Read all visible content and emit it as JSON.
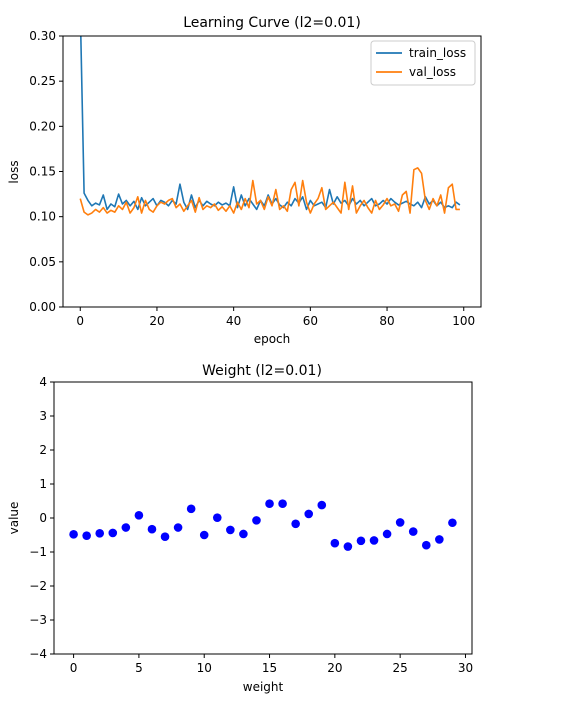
{
  "chart_data": [
    {
      "type": "line",
      "title": "Learning Curve (l2=0.01)",
      "xlabel": "epoch",
      "ylabel": "loss",
      "xlim": [
        -4.5,
        104.5
      ],
      "ylim": [
        0.0,
        0.3
      ],
      "xticks": [
        "0",
        "20",
        "40",
        "60",
        "80",
        "100"
      ],
      "yticks": [
        "0.00",
        "0.05",
        "0.10",
        "0.15",
        "0.20",
        "0.25",
        "0.30"
      ],
      "legend": "top-right",
      "grid": false,
      "x": [
        0,
        1,
        2,
        3,
        4,
        5,
        6,
        7,
        8,
        9,
        10,
        11,
        12,
        13,
        14,
        15,
        16,
        17,
        18,
        19,
        20,
        21,
        22,
        23,
        24,
        25,
        26,
        27,
        28,
        29,
        30,
        31,
        32,
        33,
        34,
        35,
        36,
        37,
        38,
        39,
        40,
        41,
        42,
        43,
        44,
        45,
        46,
        47,
        48,
        49,
        50,
        51,
        52,
        53,
        54,
        55,
        56,
        57,
        58,
        59,
        60,
        61,
        62,
        63,
        64,
        65,
        66,
        67,
        68,
        69,
        70,
        71,
        72,
        73,
        74,
        75,
        76,
        77,
        78,
        79,
        80,
        81,
        82,
        83,
        84,
        85,
        86,
        87,
        88,
        89,
        90,
        91,
        92,
        93,
        94,
        95,
        96,
        97,
        98,
        99
      ],
      "series": [
        {
          "name": "train_loss",
          "color": "#1f77b4",
          "values": [
            0.33,
            0.126,
            0.118,
            0.112,
            0.115,
            0.113,
            0.124,
            0.108,
            0.114,
            0.111,
            0.125,
            0.114,
            0.118,
            0.112,
            0.117,
            0.108,
            0.121,
            0.112,
            0.116,
            0.12,
            0.112,
            0.118,
            0.116,
            0.112,
            0.118,
            0.114,
            0.136,
            0.116,
            0.108,
            0.124,
            0.11,
            0.118,
            0.112,
            0.117,
            0.114,
            0.112,
            0.116,
            0.113,
            0.115,
            0.112,
            0.133,
            0.11,
            0.124,
            0.112,
            0.12,
            0.114,
            0.108,
            0.118,
            0.112,
            0.124,
            0.114,
            0.12,
            0.113,
            0.11,
            0.116,
            0.112,
            0.12,
            0.115,
            0.122,
            0.108,
            0.118,
            0.112,
            0.114,
            0.116,
            0.11,
            0.13,
            0.114,
            0.122,
            0.115,
            0.118,
            0.112,
            0.12,
            0.114,
            0.118,
            0.112,
            0.116,
            0.12,
            0.112,
            0.114,
            0.118,
            0.114,
            0.12,
            0.116,
            0.113,
            0.115,
            0.117,
            0.114,
            0.112,
            0.116,
            0.11,
            0.122,
            0.114,
            0.118,
            0.112,
            0.116,
            0.11,
            0.112,
            0.11,
            0.116,
            0.113
          ]
        },
        {
          "name": "val_loss",
          "color": "#ff7f0e",
          "values": [
            0.12,
            0.105,
            0.102,
            0.104,
            0.108,
            0.105,
            0.11,
            0.104,
            0.107,
            0.105,
            0.112,
            0.108,
            0.116,
            0.104,
            0.11,
            0.122,
            0.104,
            0.118,
            0.108,
            0.105,
            0.112,
            0.116,
            0.114,
            0.118,
            0.12,
            0.11,
            0.114,
            0.106,
            0.112,
            0.118,
            0.105,
            0.121,
            0.108,
            0.112,
            0.11,
            0.114,
            0.107,
            0.111,
            0.106,
            0.112,
            0.104,
            0.116,
            0.108,
            0.12,
            0.11,
            0.14,
            0.114,
            0.118,
            0.108,
            0.122,
            0.112,
            0.13,
            0.108,
            0.112,
            0.106,
            0.13,
            0.138,
            0.112,
            0.14,
            0.116,
            0.104,
            0.114,
            0.12,
            0.132,
            0.108,
            0.112,
            0.116,
            0.11,
            0.104,
            0.138,
            0.108,
            0.134,
            0.104,
            0.112,
            0.118,
            0.11,
            0.104,
            0.118,
            0.108,
            0.113,
            0.12,
            0.112,
            0.114,
            0.106,
            0.124,
            0.128,
            0.104,
            0.152,
            0.154,
            0.148,
            0.118,
            0.108,
            0.12,
            0.112,
            0.124,
            0.104,
            0.132,
            0.136,
            0.108,
            0.108
          ]
        }
      ]
    },
    {
      "type": "scatter",
      "title": "Weight (l2=0.01)",
      "xlabel": "weight",
      "ylabel": "value",
      "xlim": [
        -1.5,
        30.5
      ],
      "ylim": [
        -4,
        4
      ],
      "xticks": [
        "0",
        "5",
        "10",
        "15",
        "20",
        "25",
        "30"
      ],
      "yticks": [
        "−4",
        "−3",
        "−2",
        "−1",
        "0",
        "1",
        "2",
        "3",
        "4"
      ],
      "grid": false,
      "color": "#0000ff",
      "x": [
        0,
        1,
        2,
        3,
        4,
        5,
        6,
        7,
        8,
        9,
        10,
        11,
        12,
        13,
        14,
        15,
        16,
        17,
        18,
        19,
        20,
        21,
        22,
        23,
        24,
        25,
        26,
        27,
        28,
        29
      ],
      "values": [
        -0.48,
        -0.52,
        -0.45,
        -0.44,
        -0.28,
        0.08,
        -0.33,
        -0.55,
        -0.28,
        0.27,
        -0.5,
        0.01,
        -0.35,
        -0.47,
        -0.07,
        0.42,
        0.42,
        -0.17,
        0.12,
        0.38,
        -0.74,
        -0.84,
        -0.67,
        -0.66,
        -0.47,
        -0.13,
        -0.4,
        -0.8,
        -0.63,
        -0.14
      ]
    }
  ]
}
